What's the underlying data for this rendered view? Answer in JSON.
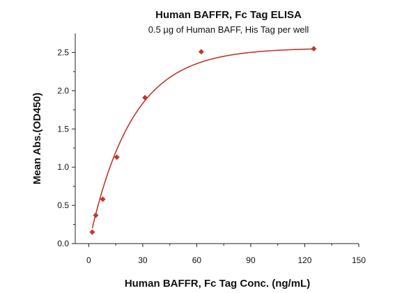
{
  "chart_data": {
    "type": "scatter",
    "title": "Human BAFFR, Fc Tag ELISA",
    "subtitle": "0.5 µg of Human BAFF, His Tag per well",
    "xlabel": "Human BAFFR, Fc Tag Conc. (ng/mL)",
    "ylabel": "Mean Abs.(OD450)",
    "xlim": [
      -7.5,
      150
    ],
    "ylim": [
      0,
      2.75
    ],
    "x_ticks": [
      0,
      30,
      60,
      90,
      120,
      150
    ],
    "x_tick_labels": [
      "0",
      "30",
      "60",
      "90",
      "120",
      "150"
    ],
    "y_ticks": [
      0,
      0.5,
      1.0,
      1.5,
      2.0,
      2.5
    ],
    "y_tick_labels": [
      "0.0",
      "0.5",
      "1.0",
      "1.5",
      "2.0",
      "2.5"
    ],
    "grid": false,
    "series": [
      {
        "marker": "diamond",
        "color": "#c0392b",
        "x": [
          1.95,
          3.9,
          7.8,
          15.6,
          31.25,
          62.5,
          125
        ],
        "y": [
          0.15,
          0.37,
          0.58,
          1.13,
          1.91,
          2.51,
          2.55
        ]
      }
    ],
    "fit_curve": {
      "color": "#c0392b",
      "x_range": [
        1.95,
        125
      ],
      "model": "one-site saturation",
      "bottom": 0.0,
      "top": 2.56,
      "rate": 0.042
    }
  }
}
